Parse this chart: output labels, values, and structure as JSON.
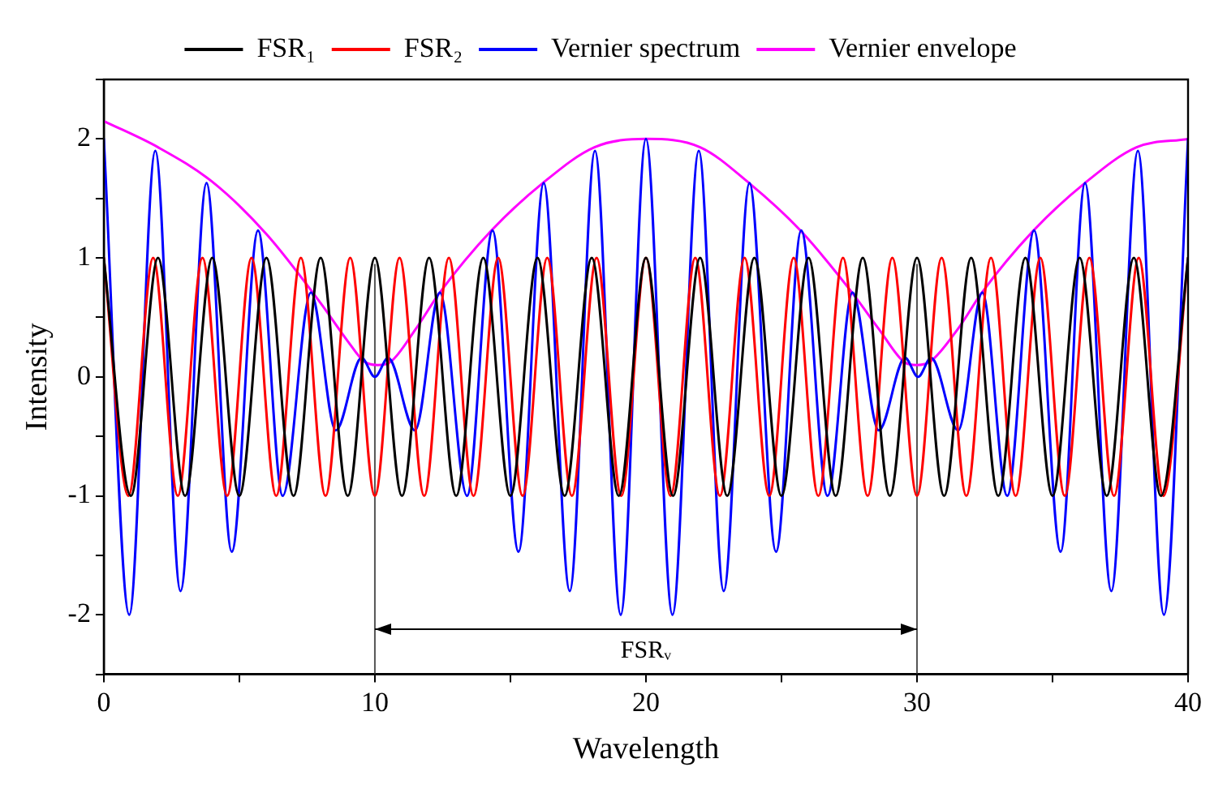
{
  "chart_data": {
    "type": "line",
    "xlabel": "Wavelength",
    "ylabel": "Intensity",
    "xlim": [
      0,
      40
    ],
    "xticks": [
      0,
      {
        "value": 5,
        "label": null
      },
      10,
      {
        "value": 15,
        "label": null
      },
      20,
      {
        "value": 25,
        "label": null
      },
      30,
      {
        "value": 35,
        "label": null
      },
      40
    ],
    "ylim": [
      -2.5,
      2.5
    ],
    "yticks": [
      {
        "value": -2.5,
        "label": null
      },
      -2,
      {
        "value": -1.5,
        "label": null
      },
      -1,
      {
        "value": -0.5,
        "label": null
      },
      0,
      {
        "value": 0.5,
        "label": null
      },
      1,
      {
        "value": 1.5,
        "label": null
      },
      2,
      {
        "value": 2.5,
        "label": null
      }
    ],
    "grid": false,
    "legend": "top",
    "marker": "none",
    "series": [
      {
        "name": "FSR₁",
        "color": "#000000",
        "x": [
          0,
          1,
          2,
          3,
          4,
          5,
          6,
          7,
          8,
          9,
          10,
          11,
          12,
          13,
          14,
          15,
          16,
          17,
          18,
          19,
          20,
          21,
          22,
          23,
          24,
          25,
          26,
          27,
          28,
          29,
          30,
          31,
          32,
          33,
          34,
          35,
          36,
          37,
          38,
          39,
          40
        ],
        "values": [
          1,
          -1,
          1,
          -1,
          1,
          -1,
          1,
          -1,
          1,
          -1,
          1,
          -1,
          1,
          -1,
          1,
          -1,
          1,
          -1,
          1,
          -1,
          1,
          -1,
          1,
          -1,
          1,
          -1,
          1,
          -1,
          1,
          -1,
          1,
          -1,
          1,
          -1,
          1,
          -1,
          1,
          -1,
          1,
          -1,
          1
        ]
      },
      {
        "name": "FSR₂",
        "color": "#ff0000",
        "x": [
          0,
          0.91,
          1.82,
          2.73,
          3.64,
          4.55,
          5.45,
          6.36,
          7.27,
          8.18,
          9.09,
          10,
          10.91,
          11.82,
          12.73,
          13.64,
          14.55,
          15.45,
          16.36,
          17.27,
          18.18,
          19.09,
          20,
          20.91,
          21.82,
          22.73,
          23.64,
          24.55,
          25.45,
          26.36,
          27.27,
          28.18,
          29.09,
          30,
          30.91,
          31.82,
          32.73,
          33.64,
          34.55,
          35.45,
          36.36,
          37.27,
          38.18,
          39.09,
          40
        ],
        "values": [
          1,
          -1,
          1,
          -1,
          1,
          -1,
          1,
          -1,
          1,
          -1,
          1,
          -1,
          1,
          -1,
          1,
          -1,
          1,
          -1,
          1,
          -1,
          1,
          -1,
          1,
          -1,
          1,
          -1,
          1,
          -1,
          1,
          -1,
          1,
          -1,
          1,
          -1,
          1,
          -1,
          1,
          -1,
          1,
          -1,
          1,
          -1,
          1,
          -1,
          1
        ]
      },
      {
        "name": "Vernier spectrum",
        "color": "#0000ff",
        "x": [
          0,
          0.94,
          1.9,
          2.83,
          3.79,
          4.72,
          5.69,
          6.6,
          7.64,
          8.56,
          9.51,
          10,
          10.49,
          11.48,
          12.4,
          13.4,
          14.34,
          15.3,
          16.23,
          17.19,
          18.12,
          19.07,
          20,
          20.98,
          21.95,
          22.87,
          23.82,
          24.8,
          25.73,
          26.7,
          27.62,
          28.59,
          29.56,
          30.04,
          30.52,
          31.52,
          32.41,
          33.33,
          34.32,
          35.3,
          36.2,
          37.17,
          38.15,
          39.11,
          40
        ],
        "values": [
          2,
          -2,
          1.9,
          -1.8,
          1.63,
          -1.47,
          1.23,
          -1,
          0.71,
          -0.45,
          0.16,
          0,
          0.16,
          -0.45,
          0.71,
          -1,
          1.23,
          -1.47,
          1.63,
          -1.8,
          1.9,
          -2,
          2,
          -2,
          1.9,
          -1.8,
          1.63,
          -1.47,
          1.23,
          -1,
          0.71,
          -0.45,
          0.16,
          0,
          0.16,
          -0.45,
          0.71,
          -1,
          1.23,
          -1.47,
          1.63,
          -1.8,
          1.9,
          -2,
          2
        ]
      },
      {
        "name": "Vernier envelope",
        "color": "#ff00ff",
        "x": [
          0,
          2,
          4,
          6,
          8,
          9,
          9.6,
          10.1,
          10.6,
          11.5,
          12.4,
          14.3,
          16.2,
          18.1,
          20,
          22,
          23.8,
          25.7,
          27.6,
          28.6,
          29.5,
          30,
          30.5,
          31.5,
          32.4,
          34.3,
          36.2,
          38.1,
          40
        ],
        "values": [
          2.15,
          1.93,
          1.64,
          1.2,
          0.62,
          0.3,
          0.13,
          0.1,
          0.13,
          0.4,
          0.71,
          1.23,
          1.63,
          1.93,
          2,
          1.93,
          1.63,
          1.23,
          0.71,
          0.4,
          0.13,
          0.1,
          0.13,
          0.4,
          0.71,
          1.23,
          1.63,
          1.93,
          2
        ]
      }
    ],
    "ref_lines": [
      {
        "axis": "x",
        "value": 10,
        "color": "#555555"
      },
      {
        "axis": "x",
        "value": 30,
        "color": "#555555"
      }
    ],
    "annotations": [
      "FSRᵥ"
    ]
  }
}
